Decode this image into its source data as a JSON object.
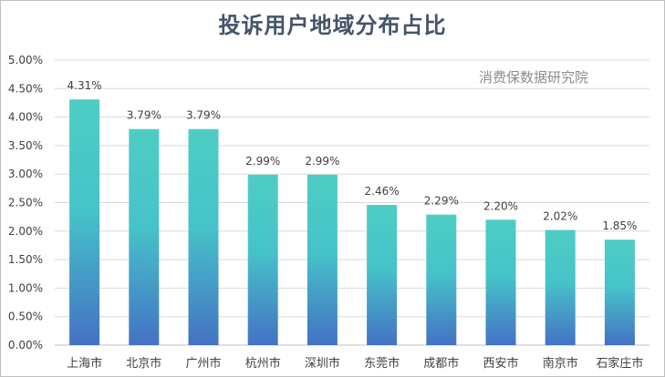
{
  "chart_data": {
    "type": "bar",
    "title": "投诉用户地域分布占比",
    "watermark": "消费保数据研究院",
    "categories": [
      "上海市",
      "北京市",
      "广州市",
      "杭州市",
      "深圳市",
      "东莞市",
      "成都市",
      "西安市",
      "南京市",
      "石家庄市"
    ],
    "values": [
      4.31,
      3.79,
      3.79,
      2.99,
      2.99,
      2.46,
      2.29,
      2.2,
      2.02,
      1.85
    ],
    "data_labels": [
      "4.31%",
      "3.79%",
      "3.79%",
      "2.99%",
      "2.99%",
      "2.46%",
      "2.29%",
      "2.20%",
      "2.02%",
      "1.85%"
    ],
    "y_ticks": [
      "0.00%",
      "0.50%",
      "1.00%",
      "1.50%",
      "2.00%",
      "2.50%",
      "3.00%",
      "3.50%",
      "4.00%",
      "4.50%",
      "5.00%"
    ],
    "ylim": [
      0,
      5
    ],
    "xlabel": "",
    "ylabel": "",
    "grid": true,
    "legend": "none",
    "colors": {
      "bar_top": "#4ecdc4",
      "bar_bottom": "#4472c4",
      "grid": "#d9d9d9",
      "title": "#44546a"
    }
  }
}
